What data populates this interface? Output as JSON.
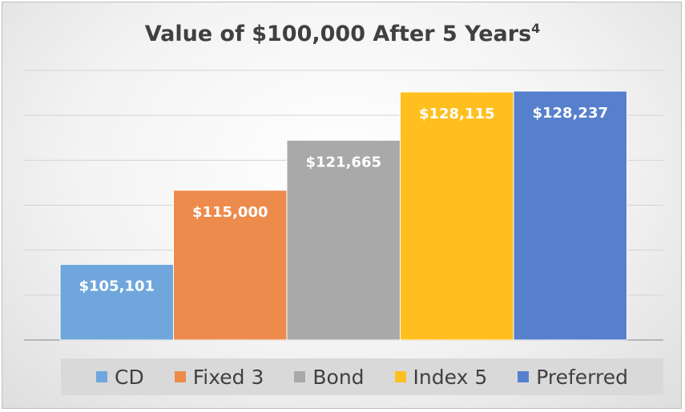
{
  "chart_data": {
    "type": "bar",
    "title": "Value of $100,000 After 5 Years",
    "title_superscript": "4",
    "categories": [
      "CD",
      "Fixed 3",
      "Bond",
      "Index 5",
      "Preferred"
    ],
    "values": [
      105101,
      115000,
      121665,
      128115,
      128237
    ],
    "data_labels": [
      "$105,101",
      "$115,000",
      "$121,665",
      "$128,115",
      "$128,237"
    ],
    "colors": [
      "#6fa7dc",
      "#ed8b4c",
      "#a9a9a9",
      "#ffc01f",
      "#5680cc"
    ],
    "ylim": [
      95000,
      131000
    ],
    "gridlines": true,
    "legend": {
      "position": "bottom"
    }
  }
}
